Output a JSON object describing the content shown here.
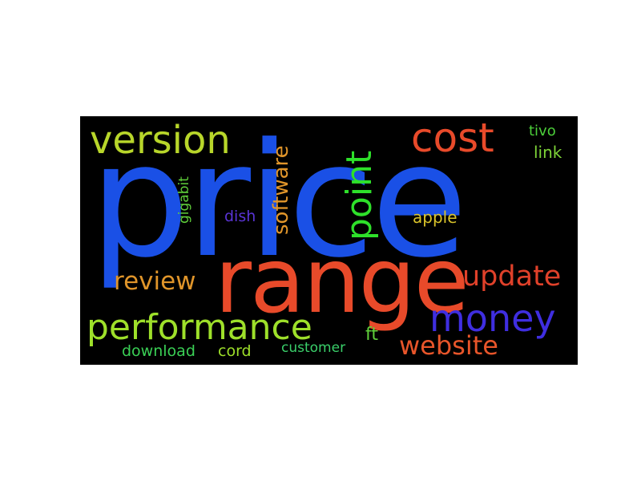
{
  "word_cloud": {
    "background": "#000000",
    "words": {
      "price": {
        "text": "price",
        "color": "#1a50e6"
      },
      "range": {
        "text": "range",
        "color": "#e84a2a"
      },
      "version": {
        "text": "version",
        "color": "#b8d62a"
      },
      "cost": {
        "text": "cost",
        "color": "#e84a2a"
      },
      "tivo": {
        "text": "tivo",
        "color": "#4ccf3a"
      },
      "link": {
        "text": "link",
        "color": "#7ed438"
      },
      "gigabit": {
        "text": "gigabit",
        "color": "#5fcf3a"
      },
      "software": {
        "text": "software",
        "color": "#e0952a"
      },
      "point": {
        "text": "point",
        "color": "#2ee02a"
      },
      "dish": {
        "text": "dish",
        "color": "#5a34d6"
      },
      "apple": {
        "text": "apple",
        "color": "#d9c32a"
      },
      "update": {
        "text": "update",
        "color": "#e0412a"
      },
      "review": {
        "text": "review",
        "color": "#e0952a"
      },
      "money": {
        "text": "money",
        "color": "#3f2ee0"
      },
      "performance": {
        "text": "performance",
        "color": "#9ee02a"
      },
      "ft": {
        "text": "ft",
        "color": "#5fcf3a"
      },
      "website": {
        "text": "website",
        "color": "#e8552a"
      },
      "download": {
        "text": "download",
        "color": "#3acf55"
      },
      "cord": {
        "text": "cord",
        "color": "#9ee02a"
      },
      "customer": {
        "text": "customer",
        "color": "#3acf6a"
      }
    }
  }
}
